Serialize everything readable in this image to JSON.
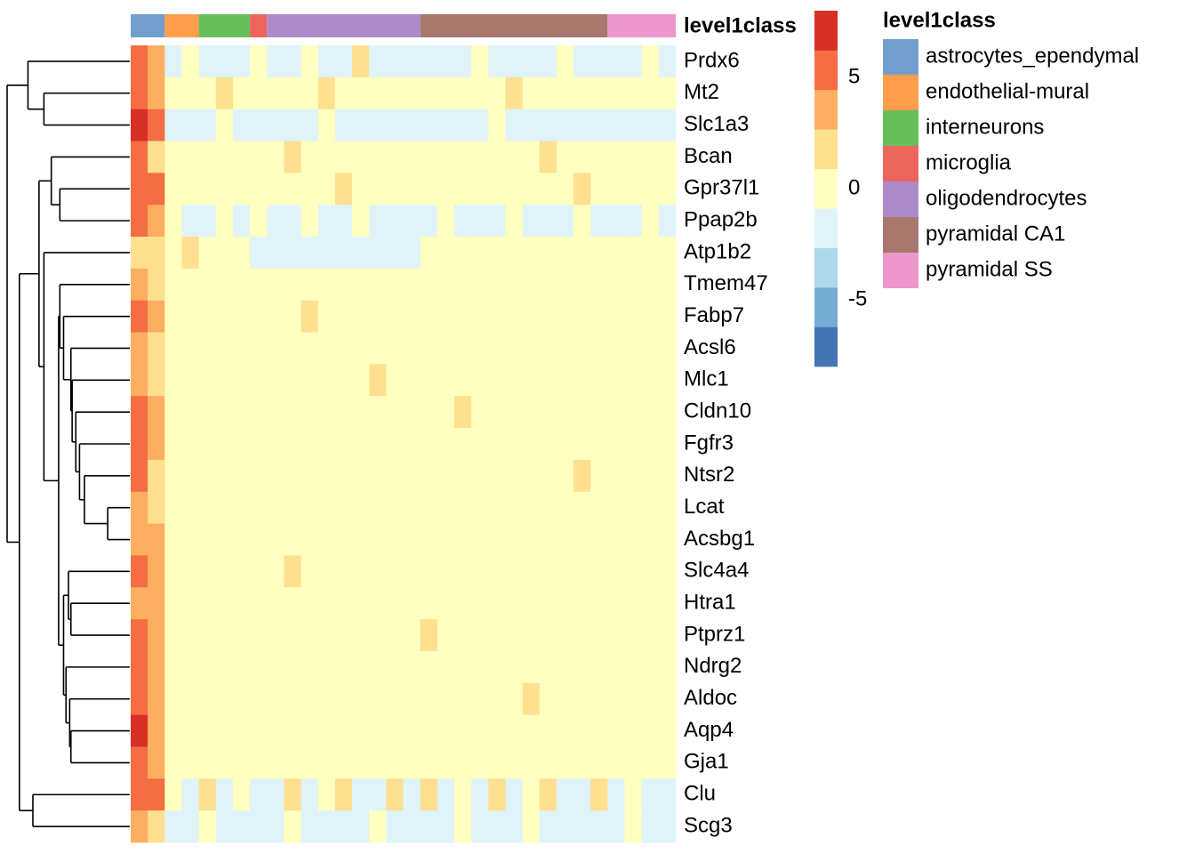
{
  "chart_data": {
    "type": "heatmap",
    "annotation_title": "level1class",
    "rows": [
      "Prdx6",
      "Mt2",
      "Slc1a3",
      "Bcan",
      "Gpr37l1",
      "Ppap2b",
      "Atp1b2",
      "Tmem47",
      "Fabp7",
      "Acsl6",
      "Mlc1",
      "Cldn10",
      "Fgfr3",
      "Ntsr2",
      "Lcat",
      "Acsbg1",
      "Slc4a4",
      "Htra1",
      "Ptprz1",
      "Ndrg2",
      "Aldoc",
      "Aqp4",
      "Gja1",
      "Clu",
      "Scg3"
    ],
    "column_groups": [
      {
        "name": "astrocytes_ependymal",
        "color": "#729ECE",
        "n_columns": 2
      },
      {
        "name": "endothelial-mural",
        "color": "#FF9E4A",
        "n_columns": 2
      },
      {
        "name": "interneurons",
        "color": "#67BF5C",
        "n_columns": 3
      },
      {
        "name": "microglia",
        "color": "#ED665D",
        "n_columns": 1
      },
      {
        "name": "oligodendrocytes",
        "color": "#AD8BC9",
        "n_columns": 9
      },
      {
        "name": "pyramidal CA1",
        "color": "#A8786E",
        "n_columns": 11
      },
      {
        "name": "pyramidal SS",
        "color": "#ED97CA",
        "n_columns": 4
      }
    ],
    "colorbar": {
      "colors": [
        "#4575B4",
        "#74ADD1",
        "#ABD9E9",
        "#E0F3F8",
        "#FFFFBF",
        "#FEE090",
        "#FDAE61",
        "#F46D43",
        "#D73027"
      ],
      "lim": [
        -8,
        8
      ],
      "ticks": [
        -5,
        0,
        5
      ]
    },
    "matrix": [
      [
        4.8,
        3.2,
        -1.1,
        -0.5,
        -1.2,
        -1.0,
        -1.3,
        -0.6,
        -1.1,
        -1.2,
        -0.4,
        -1.0,
        -1.2,
        1.1,
        -1.1,
        -1.3,
        -0.9,
        -1.0,
        -1.2,
        -1.1,
        -0.5,
        -1.2,
        -1.0,
        -1.3,
        -1.1,
        -0.4,
        -1.2,
        -1.0,
        -1.1,
        -1.2,
        -0.6,
        -1.0
      ],
      [
        5.5,
        3.8,
        0.4,
        0.2,
        0.3,
        1.1,
        0.2,
        0.5,
        0.3,
        0.6,
        0.2,
        1.2,
        0.4,
        0.3,
        0.5,
        0.2,
        0.4,
        0.3,
        0.5,
        0.2,
        0.6,
        0.3,
        1.0,
        0.2,
        0.4,
        0.3,
        0.5,
        0.2,
        0.3,
        0.4,
        0.2,
        0.3
      ],
      [
        6.8,
        5.2,
        -1.0,
        -1.1,
        -1.2,
        -0.5,
        -1.1,
        -1.0,
        -1.2,
        -1.0,
        -1.1,
        -0.6,
        -1.2,
        -1.1,
        -1.0,
        -1.2,
        -1.1,
        -1.2,
        -1.0,
        -1.1,
        -1.2,
        -0.7,
        -1.1,
        -1.0,
        -1.2,
        -1.1,
        -1.0,
        -1.2,
        -1.1,
        -1.0,
        -1.2,
        -1.1
      ],
      [
        5.8,
        2.6,
        0.3,
        0.5,
        0.2,
        0.4,
        0.3,
        0.5,
        0.4,
        1.3,
        0.6,
        0.3,
        0.2,
        0.5,
        0.3,
        0.4,
        0.2,
        0.3,
        0.2,
        0.4,
        0.3,
        0.5,
        0.2,
        0.3,
        1.0,
        0.4,
        0.2,
        0.3,
        0.4,
        0.3,
        0.2,
        0.3
      ],
      [
        6.0,
        4.5,
        0.5,
        0.3,
        0.4,
        0.3,
        0.5,
        0.6,
        0.3,
        0.4,
        0.5,
        0.3,
        1.1,
        0.4,
        0.3,
        0.5,
        0.4,
        0.3,
        0.4,
        0.2,
        0.5,
        0.3,
        0.4,
        0.3,
        0.2,
        0.5,
        1.0,
        0.3,
        0.4,
        0.3,
        0.5,
        0.3
      ],
      [
        6.2,
        3.5,
        -0.5,
        -1.0,
        -1.1,
        -0.6,
        -1.0,
        -0.4,
        -1.1,
        -1.0,
        -0.3,
        -1.2,
        -1.0,
        -0.5,
        -1.1,
        -1.0,
        -1.2,
        -1.0,
        -0.4,
        -1.1,
        -1.2,
        -1.0,
        -0.5,
        -1.1,
        -1.0,
        -1.2,
        -0.6,
        -1.0,
        -1.1,
        -1.0,
        -0.5,
        -1.2
      ],
      [
        2.4,
        1.6,
        0.3,
        1.0,
        0.2,
        0.4,
        -0.5,
        -1.0,
        -1.1,
        -1.0,
        -1.2,
        -1.1,
        -1.0,
        -1.2,
        -1.1,
        -1.0,
        -1.1,
        0.3,
        0.4,
        0.2,
        0.5,
        0.3,
        0.2,
        0.4,
        0.3,
        0.5,
        0.2,
        0.3,
        0.4,
        0.2,
        0.3,
        0.4
      ],
      [
        3.0,
        1.8,
        0.4,
        0.6,
        0.3,
        0.2,
        0.4,
        0.3,
        0.5,
        0.3,
        0.2,
        0.4,
        0.3,
        0.6,
        0.2,
        0.3,
        0.4,
        0.2,
        0.3,
        0.5,
        0.4,
        0.3,
        0.2,
        0.6,
        0.3,
        0.2,
        0.4,
        0.3,
        0.5,
        0.3,
        0.2,
        0.4
      ],
      [
        5.6,
        3.0,
        0.5,
        0.3,
        0.6,
        0.4,
        0.3,
        0.2,
        0.4,
        0.3,
        1.0,
        0.5,
        0.3,
        0.2,
        0.4,
        0.6,
        0.3,
        0.4,
        0.2,
        0.5,
        0.3,
        0.4,
        0.6,
        0.3,
        0.2,
        0.4,
        0.5,
        0.3,
        0.2,
        0.4,
        0.3,
        0.5
      ],
      [
        3.6,
        2.0,
        0.3,
        0.4,
        0.6,
        0.5,
        0.3,
        0.4,
        0.3,
        0.2,
        0.4,
        0.3,
        0.5,
        0.2,
        0.3,
        0.4,
        0.5,
        0.3,
        0.6,
        0.4,
        0.2,
        0.3,
        0.5,
        0.4,
        0.3,
        0.2,
        0.4,
        0.6,
        0.3,
        0.5,
        0.4,
        0.2
      ],
      [
        4.2,
        2.5,
        0.4,
        0.3,
        0.2,
        0.5,
        0.4,
        0.3,
        0.6,
        0.4,
        0.3,
        0.2,
        0.5,
        0.4,
        1.1,
        0.3,
        0.2,
        0.4,
        0.5,
        0.3,
        0.2,
        0.4,
        0.3,
        0.5,
        0.2,
        0.4,
        0.3,
        0.2,
        0.4,
        0.3,
        0.5,
        0.2
      ],
      [
        5.4,
        3.4,
        0.3,
        0.5,
        0.4,
        0.2,
        0.3,
        0.5,
        0.2,
        0.4,
        0.3,
        0.5,
        0.4,
        0.3,
        0.2,
        0.5,
        0.3,
        0.4,
        0.2,
        1.0,
        0.3,
        0.5,
        0.4,
        0.2,
        0.3,
        0.5,
        0.4,
        0.3,
        0.2,
        0.5,
        0.3,
        0.4
      ],
      [
        4.6,
        2.8,
        0.5,
        0.4,
        0.3,
        0.2,
        0.5,
        0.3,
        0.4,
        0.5,
        0.2,
        0.3,
        0.4,
        0.2,
        0.5,
        0.3,
        0.4,
        0.2,
        0.3,
        0.5,
        0.4,
        0.2,
        0.3,
        0.4,
        0.5,
        0.2,
        0.3,
        0.4,
        0.2,
        0.3,
        0.4,
        0.5
      ],
      [
        4.9,
        2.2,
        0.2,
        0.3,
        0.5,
        0.4,
        0.2,
        0.3,
        0.5,
        0.2,
        0.4,
        0.3,
        0.2,
        0.5,
        0.4,
        0.3,
        0.2,
        0.4,
        0.3,
        0.2,
        0.5,
        0.4,
        0.3,
        0.2,
        0.4,
        0.3,
        1.0,
        0.5,
        0.3,
        0.2,
        0.4,
        0.3
      ],
      [
        3.8,
        2.4,
        0.4,
        0.2,
        0.3,
        0.5,
        0.3,
        0.4,
        0.2,
        0.3,
        0.5,
        0.4,
        0.2,
        0.3,
        0.4,
        0.2,
        0.5,
        0.3,
        0.4,
        0.2,
        0.3,
        0.5,
        0.2,
        0.4,
        0.3,
        0.4,
        0.2,
        0.3,
        0.5,
        0.4,
        0.2,
        0.3
      ],
      [
        4.1,
        2.7,
        0.3,
        0.4,
        0.2,
        0.3,
        0.4,
        0.2,
        0.3,
        0.4,
        0.2,
        0.5,
        0.3,
        0.4,
        0.2,
        0.3,
        0.4,
        0.5,
        0.2,
        0.3,
        0.4,
        0.2,
        0.5,
        0.3,
        0.2,
        0.4,
        0.3,
        0.2,
        0.4,
        0.3,
        0.2,
        0.4
      ],
      [
        5.9,
        3.6,
        0.5,
        0.3,
        0.4,
        0.6,
        0.3,
        0.2,
        0.4,
        1.1,
        0.3,
        0.5,
        0.2,
        0.4,
        0.3,
        0.5,
        0.2,
        0.3,
        0.4,
        0.5,
        0.3,
        0.2,
        0.4,
        0.3,
        0.5,
        0.2,
        0.3,
        0.4,
        0.2,
        0.5,
        0.3,
        0.4
      ],
      [
        4.4,
        3.1,
        0.3,
        0.5,
        0.2,
        0.4,
        0.5,
        0.3,
        0.2,
        0.4,
        0.5,
        0.3,
        0.4,
        0.2,
        0.3,
        0.5,
        0.4,
        0.2,
        0.3,
        0.4,
        0.5,
        0.3,
        0.2,
        0.4,
        0.3,
        0.5,
        0.2,
        0.4,
        0.3,
        0.2,
        0.5,
        0.3
      ],
      [
        4.7,
        2.9,
        0.4,
        0.3,
        0.5,
        0.3,
        0.2,
        0.4,
        0.3,
        0.5,
        0.2,
        0.4,
        0.3,
        0.5,
        0.2,
        0.4,
        0.3,
        1.0,
        0.4,
        0.2,
        0.3,
        0.5,
        0.4,
        0.2,
        0.3,
        0.4,
        0.2,
        0.5,
        0.3,
        0.4,
        0.2,
        0.3
      ],
      [
        6.1,
        4.0,
        0.3,
        0.4,
        0.2,
        0.5,
        0.3,
        0.4,
        0.5,
        0.2,
        0.3,
        0.4,
        0.2,
        0.3,
        0.5,
        0.4,
        0.2,
        0.3,
        0.5,
        0.2,
        0.4,
        0.3,
        0.5,
        0.2,
        0.4,
        0.3,
        0.5,
        0.2,
        0.4,
        0.3,
        0.2,
        0.5
      ],
      [
        5.2,
        3.3,
        0.4,
        0.2,
        0.3,
        0.4,
        0.5,
        0.2,
        0.3,
        0.4,
        0.2,
        0.5,
        0.3,
        0.2,
        0.4,
        0.5,
        0.3,
        0.2,
        0.4,
        0.3,
        0.2,
        0.5,
        0.3,
        1.0,
        0.2,
        0.4,
        0.3,
        0.5,
        0.2,
        0.4,
        0.3,
        0.2
      ],
      [
        6.6,
        4.1,
        0.5,
        0.3,
        0.2,
        0.4,
        0.3,
        0.5,
        0.2,
        0.3,
        0.4,
        0.2,
        0.5,
        0.3,
        0.4,
        0.2,
        0.3,
        0.5,
        0.2,
        0.4,
        0.3,
        0.2,
        0.5,
        0.4,
        0.3,
        0.2,
        0.4,
        0.3,
        0.5,
        0.2,
        0.4,
        0.3
      ],
      [
        5.7,
        3.7,
        0.3,
        0.4,
        0.5,
        0.2,
        0.4,
        0.3,
        0.4,
        0.2,
        0.5,
        0.3,
        0.2,
        0.4,
        0.5,
        0.3,
        0.2,
        0.4,
        0.3,
        0.5,
        0.2,
        0.4,
        0.3,
        0.2,
        0.5,
        0.3,
        0.4,
        0.2,
        0.3,
        0.5,
        0.2,
        0.4
      ],
      [
        6.0,
        4.8,
        -0.5,
        -1.0,
        1.1,
        -1.0,
        0.4,
        -1.1,
        -1.0,
        1.2,
        -1.1,
        -0.4,
        1.0,
        -1.0,
        -1.2,
        1.1,
        -1.0,
        1.0,
        -1.1,
        0.3,
        -1.0,
        1.2,
        -1.1,
        -0.5,
        1.0,
        -1.0,
        -1.1,
        1.1,
        -1.0,
        0.4,
        -1.1,
        -1.0
      ],
      [
        3.5,
        2.2,
        -1.1,
        -1.0,
        -0.4,
        -1.1,
        -1.2,
        -1.0,
        -1.1,
        -0.5,
        -1.0,
        -1.2,
        -1.1,
        -1.0,
        -0.4,
        -1.1,
        -1.2,
        -1.0,
        -1.1,
        -0.5,
        -1.2,
        -1.0,
        -1.1,
        -0.4,
        -1.0,
        -1.2,
        -1.1,
        -1.0,
        -1.1,
        -0.5,
        -1.0,
        -1.2
      ]
    ],
    "row_dendrogram": {
      "height": 10.0,
      "children": [
        {
          "height": 8.3,
          "children": [
            0,
            {
              "height": 7.0,
              "children": [
                1,
                2
              ]
            }
          ]
        },
        {
          "height": 9.0,
          "children": [
            {
              "height": 7.4,
              "children": [
                {
                  "height": 6.4,
                  "children": [
                    3,
                    {
                      "height": 5.7,
                      "children": [
                        4,
                        5
                      ]
                    }
                  ]
                },
                {
                  "height": 7.0,
                  "children": [
                    6,
                    {
                      "height": 5.8,
                      "children": [
                        {
                          "height": 5.7,
                          "children": [
                            7,
                            {
                              "height": 5.4,
                              "children": [
                                8,
                                {
                                  "height": 4.8,
                                  "children": [
                                    9,
                                    {
                                      "height": 4.7,
                                      "children": [
                                        10,
                                        {
                                          "height": 4.4,
                                          "children": [
                                            11,
                                            {
                                              "height": 4.1,
                                              "children": [
                                                12,
                                                {
                                                  "height": 3.7,
                                                  "children": [
                                                    13,
                                                    {
                                                      "height": 1.8,
                                                      "children": [
                                                        14,
                                                        15
                                                      ]
                                                    }
                                                  ]
                                                }
                                              ]
                                            }
                                          ]
                                        }
                                      ]
                                    }
                                  ]
                                }
                              ]
                            }
                          ]
                        },
                        {
                          "height": 5.4,
                          "children": [
                            {
                              "height": 5.0,
                              "children": [
                                16,
                                {
                                  "height": 4.8,
                                  "children": [
                                    17,
                                    18
                                  ]
                                }
                              ]
                            },
                            {
                              "height": 5.2,
                              "children": [
                                19,
                                {
                                  "height": 4.9,
                                  "children": [
                                    20,
                                    {
                                      "height": 4.8,
                                      "children": [
                                        21,
                                        22
                                      ]
                                    }
                                  ]
                                }
                              ]
                            }
                          ]
                        }
                      ]
                    }
                  ]
                }
              ]
            },
            {
              "height": 7.9,
              "children": [
                23,
                24
              ]
            }
          ]
        }
      ]
    }
  }
}
